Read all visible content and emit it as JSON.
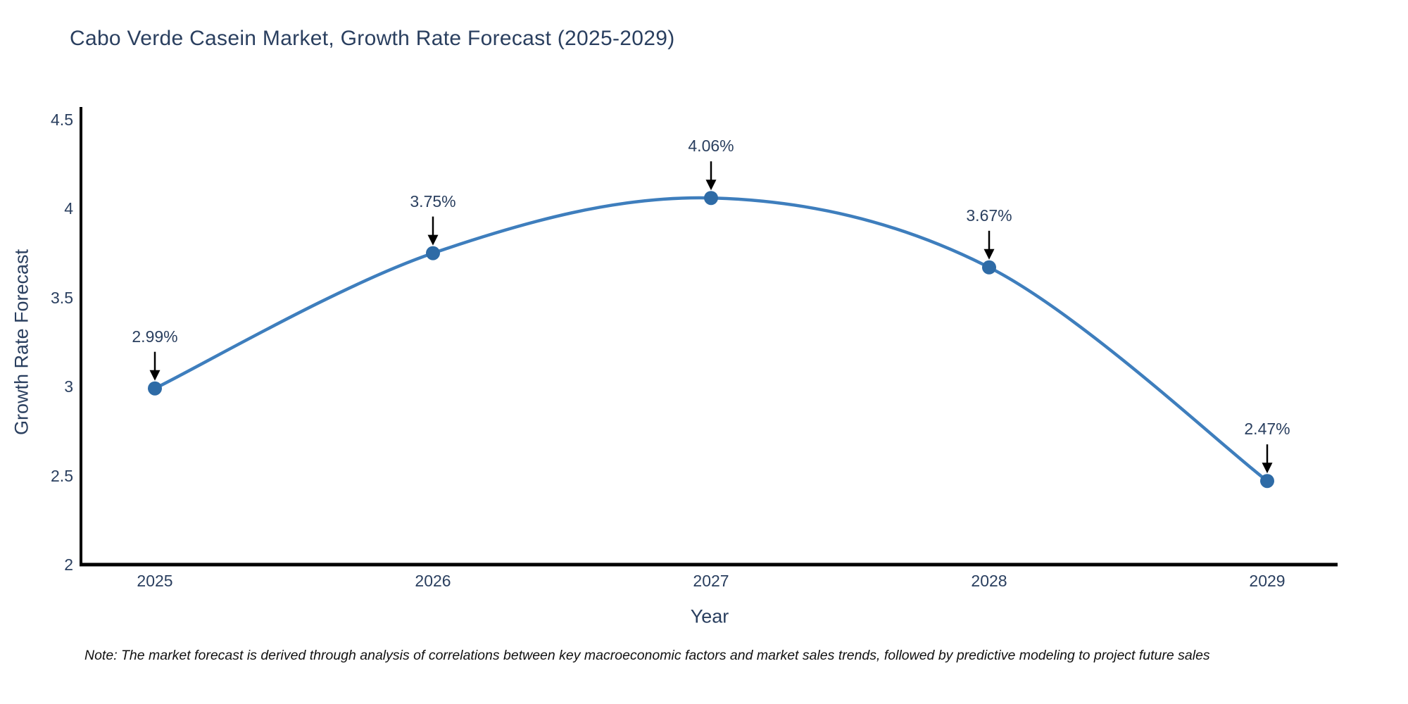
{
  "chart_data": {
    "type": "line",
    "title": "Cabo Verde Casein Market, Growth Rate Forecast (2025-2029)",
    "xlabel": "Year",
    "ylabel": "Growth Rate Forecast",
    "x": [
      "2025",
      "2026",
      "2027",
      "2028",
      "2029"
    ],
    "series": [
      {
        "name": "Growth Rate Forecast",
        "values": [
          2.99,
          3.75,
          4.06,
          3.67,
          2.47
        ]
      }
    ],
    "point_labels": [
      "2.99%",
      "3.75%",
      "4.06%",
      "3.67%",
      "2.47%"
    ],
    "ylim": [
      2,
      4.5
    ],
    "yticks": [
      2,
      2.5,
      3,
      3.5,
      4,
      4.5
    ],
    "ytick_labels": [
      "2",
      "2.5",
      "3",
      "3.5",
      "4",
      "4.5"
    ],
    "line_shape": "spline",
    "grid": false,
    "legend": "none",
    "markers": true,
    "annotation_arrows": true,
    "colors": {
      "line": "#3e7ebd",
      "marker": "#2e6ba6",
      "axis": "#000000",
      "arrow": "#000000",
      "text": "#2a3f5f",
      "note_text": "#111111"
    }
  },
  "note": {
    "text": "Note: The market forecast is derived through analysis of correlations between key macroeconomic factors and market sales trends, followed by predictive modeling to project future sales"
  }
}
